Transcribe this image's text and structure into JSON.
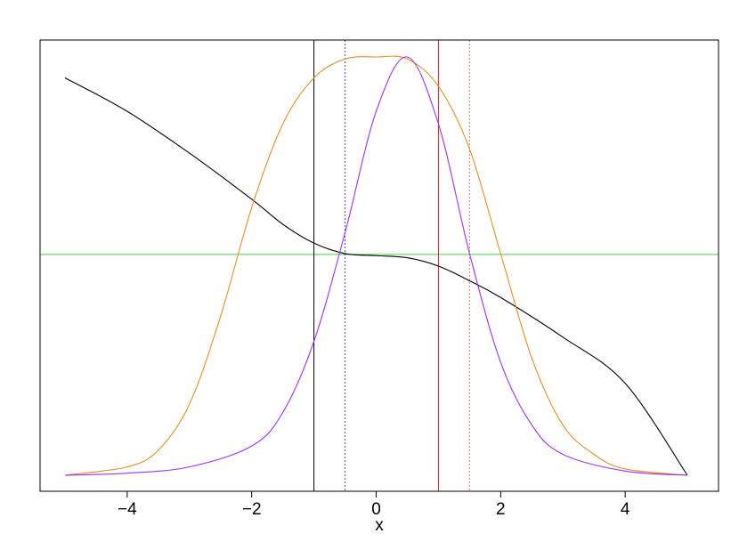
{
  "chart_data": {
    "type": "line",
    "title": "",
    "xlabel": "x",
    "ylabel": "",
    "xlim": [
      -5.4,
      5.5
    ],
    "ylim": [
      0,
      1
    ],
    "x_ticks": [
      -4,
      -2,
      0,
      2,
      4
    ],
    "x_tick_labels": [
      "−4",
      "−2",
      "0",
      "2",
      "4"
    ],
    "grid": false,
    "legend": "none",
    "series": [
      {
        "color": "#000000",
        "x": [
          -5,
          -4,
          -3,
          -2,
          -1.5,
          -1,
          -0.5,
          0,
          0.5,
          1,
          1.5,
          2,
          3,
          4,
          5
        ],
        "y": [
          0.95,
          0.87,
          0.77,
          0.66,
          0.6,
          0.555,
          0.53,
          0.525,
          0.52,
          0.5,
          0.465,
          0.425,
          0.33,
          0.22,
          0.0
        ]
      },
      {
        "color": "#e8901c",
        "x": [
          -5,
          -4,
          -3.5,
          -3,
          -2.5,
          -2,
          -1.5,
          -1,
          -0.5,
          0,
          0.5,
          1,
          1.5,
          2,
          2.5,
          3,
          3.5,
          4,
          5
        ],
        "y": [
          0.0,
          0.02,
          0.06,
          0.17,
          0.38,
          0.64,
          0.84,
          0.95,
          0.995,
          1.0,
          0.995,
          0.93,
          0.78,
          0.53,
          0.28,
          0.12,
          0.05,
          0.015,
          0.0
        ]
      },
      {
        "color": "#9b30ff",
        "x": [
          -5,
          -4,
          -3,
          -2,
          -1.5,
          -1,
          -0.5,
          0,
          0.5,
          1,
          1.5,
          2,
          2.5,
          3,
          4,
          5
        ],
        "y": [
          0.0,
          0.005,
          0.02,
          0.07,
          0.15,
          0.32,
          0.58,
          0.87,
          1.0,
          0.84,
          0.53,
          0.27,
          0.12,
          0.05,
          0.01,
          0.0
        ]
      }
    ],
    "hlines": [
      {
        "y": 0.528,
        "color": "#33dd33",
        "style": "solid"
      }
    ],
    "vlines": [
      {
        "x": -1,
        "color": "#000000",
        "style": "solid"
      },
      {
        "x": -0.5,
        "color": "#4040dd",
        "style": "dotted"
      },
      {
        "x": 1,
        "color": "#dd2222",
        "style": "solid"
      },
      {
        "x": 1.5,
        "color": "#ff6666",
        "style": "dotted"
      }
    ]
  }
}
